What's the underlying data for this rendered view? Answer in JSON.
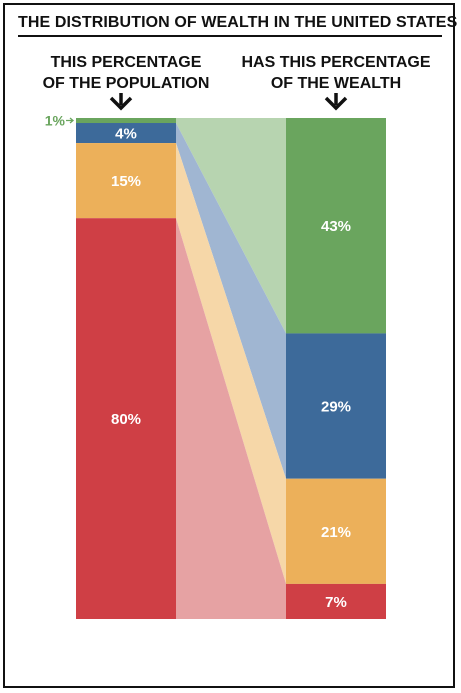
{
  "title": "THE DISTRIBUTION OF WEALTH IN THE UNITED STATES",
  "left_header": [
    "THIS PERCENTAGE",
    "OF THE POPULATION"
  ],
  "right_header": [
    "HAS THIS PERCENTAGE",
    "OF THE WEALTH"
  ],
  "chart_data": {
    "type": "bar",
    "categories": [
      "Population",
      "Wealth"
    ],
    "series": [
      {
        "population_label": "1%",
        "population": 1,
        "wealth_label": "43%",
        "wealth": 43,
        "color": "#6aa55e",
        "light_color": "#b7d4b0",
        "label_color": "#6aa55e"
      },
      {
        "population_label": "4%",
        "population": 4,
        "wealth_label": "29%",
        "wealth": 29,
        "color": "#3d6a9a",
        "light_color": "#a0b6d2",
        "label_color": "#ffffff"
      },
      {
        "population_label": "15%",
        "population": 15,
        "wealth_label": "21%",
        "wealth": 21,
        "color": "#ecb05a",
        "light_color": "#f6d7a8",
        "label_color": "#ffffff"
      },
      {
        "population_label": "80%",
        "population": 80,
        "wealth_label": "7%",
        "wealth": 7,
        "color": "#cf3f45",
        "light_color": "#e6a2a3",
        "label_color": "#ffffff"
      }
    ],
    "ylim": [
      0,
      100
    ],
    "grid": false,
    "legend": "none"
  }
}
